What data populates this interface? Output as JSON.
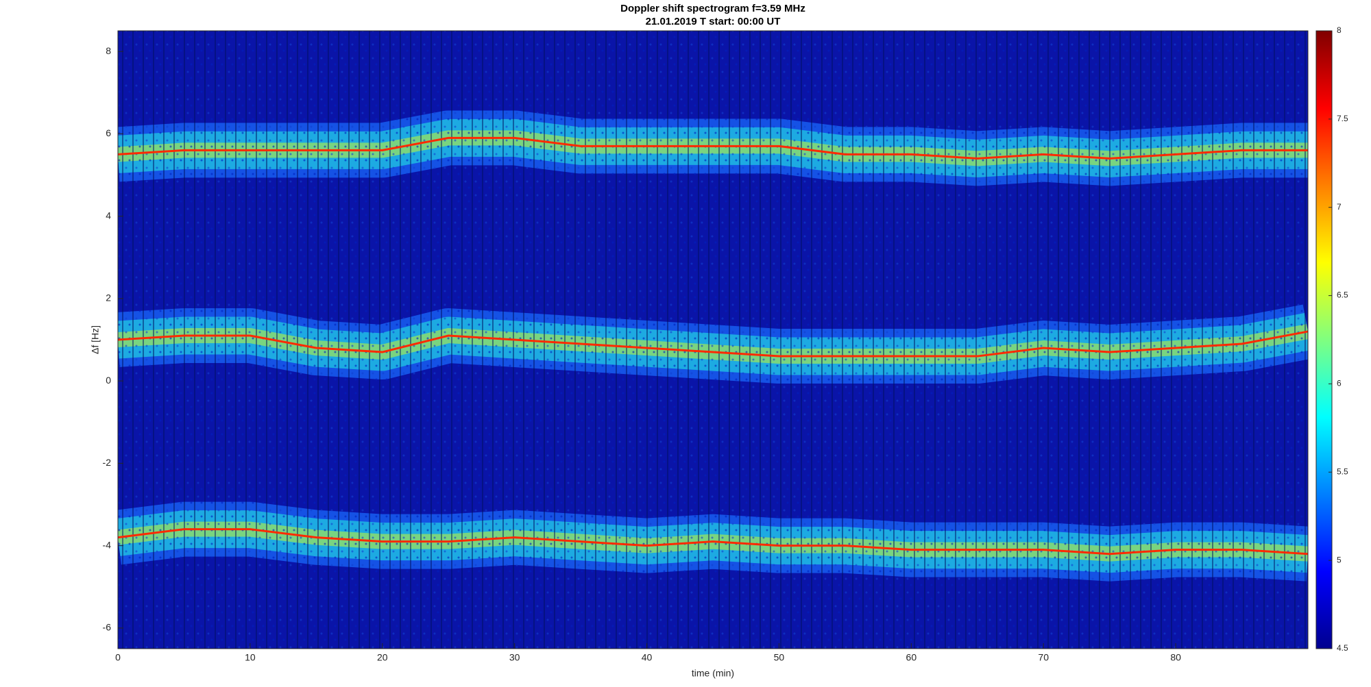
{
  "chart_data": {
    "type": "spectrogram",
    "title": "Doppler shift spectrogram f=3.59 MHz",
    "subtitle": "21.01.2019   T start: 00:00 UT",
    "x_label": "time (min)",
    "y_label": "Δf [Hz]",
    "xlim": [
      0,
      90
    ],
    "ylim": [
      -6.5,
      8.5
    ],
    "xticks": [
      0,
      10,
      20,
      30,
      40,
      50,
      60,
      70,
      80
    ],
    "yticks": [
      -6,
      -4,
      -2,
      0,
      2,
      4,
      6,
      8
    ],
    "grid": false,
    "x": [
      0,
      5,
      10,
      15,
      20,
      25,
      30,
      35,
      40,
      45,
      50,
      55,
      60,
      65,
      70,
      75,
      80,
      85,
      90
    ],
    "series": [
      {
        "color": "#ff2a00",
        "values": [
          5.5,
          5.6,
          5.6,
          5.6,
          5.6,
          5.9,
          5.9,
          5.7,
          5.7,
          5.7,
          5.7,
          5.5,
          5.5,
          5.4,
          5.5,
          5.4,
          5.5,
          5.6,
          5.6
        ]
      },
      {
        "color": "#ff2a00",
        "values": [
          1.0,
          1.1,
          1.1,
          0.8,
          0.7,
          1.1,
          1.0,
          0.9,
          0.8,
          0.7,
          0.6,
          0.6,
          0.6,
          0.6,
          0.8,
          0.7,
          0.8,
          0.9,
          1.2
        ]
      },
      {
        "color": "#ff2a00",
        "values": [
          -3.8,
          -3.6,
          -3.6,
          -3.8,
          -3.9,
          -3.9,
          -3.8,
          -3.9,
          -4.0,
          -3.9,
          -4.0,
          -4.0,
          -4.1,
          -4.1,
          -4.1,
          -4.2,
          -4.1,
          -4.1,
          -4.2
        ]
      }
    ],
    "colorbar": {
      "clim": [
        4.5,
        8
      ],
      "ticks": [
        4.5,
        5,
        5.5,
        6,
        6.5,
        7,
        7.5,
        8
      ]
    }
  }
}
